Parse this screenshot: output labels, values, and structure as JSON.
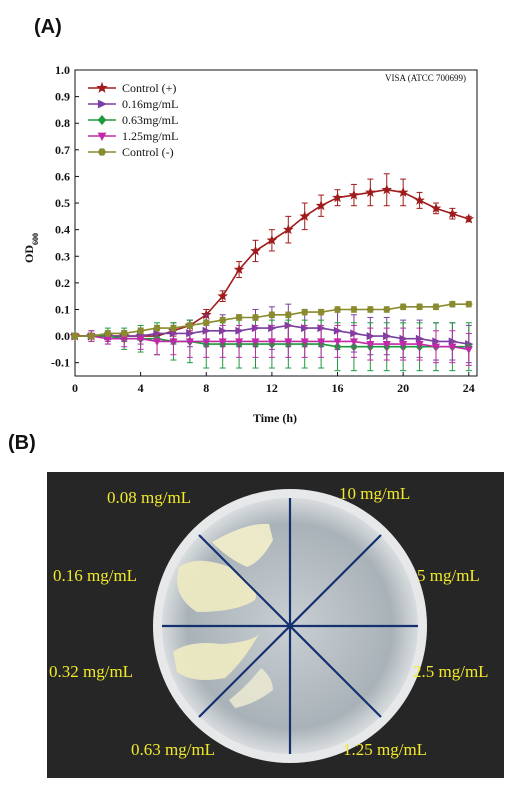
{
  "panels": {
    "a_label": "(A)",
    "b_label": "(B)"
  },
  "chart_data": {
    "type": "line",
    "xlabel": "Time (h)",
    "ylabel": "OD",
    "ylabel_sub": "600",
    "annotation": "VISA (ATCC 700699)",
    "xlim": [
      0,
      24.5
    ],
    "ylim": [
      -0.15,
      1.0
    ],
    "xticks": [
      0,
      4,
      8,
      12,
      16,
      20,
      24
    ],
    "yticks": [
      -0.1,
      0.0,
      0.1,
      0.2,
      0.3,
      0.4,
      0.5,
      0.6,
      0.7,
      0.8,
      0.9,
      1.0
    ],
    "x": [
      0,
      1,
      2,
      3,
      4,
      5,
      6,
      7,
      8,
      9,
      10,
      11,
      12,
      13,
      14,
      15,
      16,
      17,
      18,
      19,
      20,
      21,
      22,
      23,
      24
    ],
    "legend_position": "top-left",
    "series": [
      {
        "name": "Control (+)",
        "color": "#a01c1c",
        "marker": "star",
        "values": [
          0.0,
          0.0,
          0.0,
          0.0,
          0.0,
          0.0,
          0.02,
          0.04,
          0.08,
          0.15,
          0.25,
          0.32,
          0.36,
          0.4,
          0.45,
          0.49,
          0.52,
          0.53,
          0.54,
          0.55,
          0.54,
          0.51,
          0.48,
          0.46,
          0.44
        ],
        "errors": [
          0.01,
          0.01,
          0.01,
          0.01,
          0.01,
          0.01,
          0.02,
          0.02,
          0.02,
          0.02,
          0.03,
          0.04,
          0.04,
          0.05,
          0.05,
          0.04,
          0.03,
          0.04,
          0.05,
          0.06,
          0.05,
          0.03,
          0.02,
          0.02,
          0.01
        ]
      },
      {
        "name": "0.16mg/mL",
        "color": "#7a3fa0",
        "marker": "triangle-right",
        "values": [
          0.0,
          0.0,
          0.0,
          0.0,
          0.0,
          0.01,
          0.01,
          0.01,
          0.02,
          0.02,
          0.02,
          0.03,
          0.03,
          0.04,
          0.03,
          0.03,
          0.02,
          0.01,
          0.0,
          0.0,
          -0.01,
          -0.01,
          -0.02,
          -0.02,
          -0.03
        ],
        "errors": [
          0.01,
          0.01,
          0.02,
          0.02,
          0.03,
          0.03,
          0.04,
          0.05,
          0.06,
          0.06,
          0.06,
          0.07,
          0.08,
          0.08,
          0.07,
          0.07,
          0.07,
          0.07,
          0.07,
          0.07,
          0.07,
          0.07,
          0.07,
          0.07,
          0.07
        ]
      },
      {
        "name": "0.63mg/mL",
        "color": "#1e9a3c",
        "marker": "diamond",
        "values": [
          0.0,
          0.0,
          0.0,
          -0.01,
          -0.01,
          -0.01,
          -0.02,
          -0.02,
          -0.03,
          -0.03,
          -0.03,
          -0.03,
          -0.03,
          -0.03,
          -0.03,
          -0.03,
          -0.04,
          -0.04,
          -0.04,
          -0.04,
          -0.04,
          -0.04,
          -0.04,
          -0.04,
          -0.04
        ],
        "errors": [
          0.01,
          0.02,
          0.03,
          0.04,
          0.05,
          0.06,
          0.07,
          0.08,
          0.09,
          0.09,
          0.09,
          0.09,
          0.09,
          0.09,
          0.09,
          0.09,
          0.09,
          0.09,
          0.09,
          0.09,
          0.09,
          0.09,
          0.09,
          0.09,
          0.09
        ]
      },
      {
        "name": "1.25mg/mL",
        "color": "#c02aa8",
        "marker": "triangle-down",
        "values": [
          0.0,
          0.0,
          -0.01,
          -0.01,
          -0.01,
          -0.02,
          -0.02,
          -0.02,
          -0.02,
          -0.02,
          -0.02,
          -0.02,
          -0.02,
          -0.02,
          -0.02,
          -0.02,
          -0.02,
          -0.02,
          -0.03,
          -0.03,
          -0.03,
          -0.03,
          -0.04,
          -0.04,
          -0.05
        ],
        "errors": [
          0.01,
          0.02,
          0.02,
          0.03,
          0.04,
          0.05,
          0.05,
          0.06,
          0.06,
          0.06,
          0.06,
          0.06,
          0.06,
          0.06,
          0.06,
          0.06,
          0.06,
          0.06,
          0.06,
          0.06,
          0.06,
          0.06,
          0.06,
          0.06,
          0.06
        ]
      },
      {
        "name": "Control (-)",
        "color": "#8a8a2e",
        "marker": "hexagon",
        "values": [
          0.0,
          0.0,
          0.01,
          0.01,
          0.02,
          0.03,
          0.03,
          0.04,
          0.05,
          0.06,
          0.07,
          0.07,
          0.08,
          0.08,
          0.09,
          0.09,
          0.1,
          0.1,
          0.1,
          0.1,
          0.11,
          0.11,
          0.11,
          0.12,
          0.12
        ],
        "errors": [
          0.01,
          0.01,
          0.01,
          0.01,
          0.01,
          0.01,
          0.01,
          0.01,
          0.01,
          0.01,
          0.01,
          0.01,
          0.01,
          0.01,
          0.01,
          0.01,
          0.01,
          0.01,
          0.01,
          0.01,
          0.01,
          0.01,
          0.01,
          0.01,
          0.01
        ]
      }
    ]
  },
  "plate": {
    "concentrations": [
      "0.08 mg/mL",
      "10 mg/mL",
      "0.16 mg/mL",
      "5 mg/mL",
      "0.32 mg/mL",
      "2.5 mg/mL",
      "0.63 mg/mL",
      "1.25 mg/mL"
    ],
    "label_color": "#f2ea2c",
    "background": "#262626"
  }
}
